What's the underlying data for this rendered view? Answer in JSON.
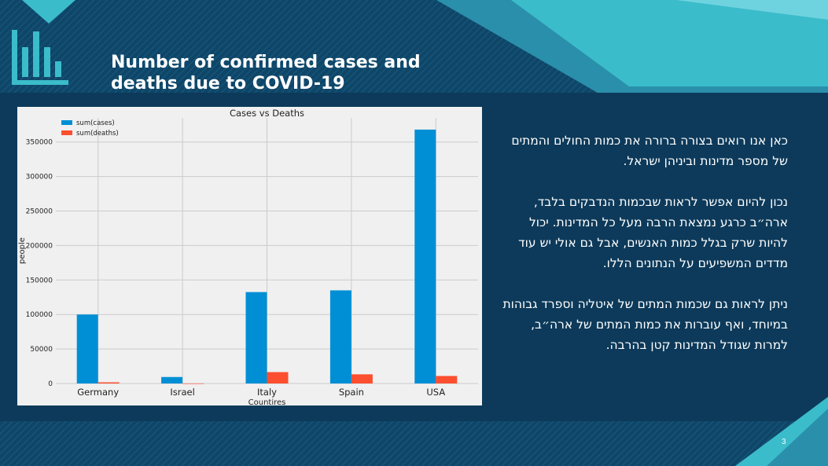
{
  "slide": {
    "title_line1": "Number of confirmed cases and",
    "title_line2": "deaths due to COVID-19",
    "page_number": "3",
    "paragraphs": [
      "כאן אנו רואים בצורה ברורה את כמות החולים והמתים של מספר מדינות וביניהן ישראל.",
      "נכון להיום אפשר לראות שבכמות הנדבקים בלבד, ארה״ב כרגע נמצאת הרבה מעל כל המדינות. יכול להיות שרק בגלל כמות האנשים, אבל גם אולי יש עוד מדדים המשפיעים על הנתונים הללו.",
      "ניתן לראות גם שכמות המתים של איטליה וספרד גבוהות במיוחד, ואף עוברות את כמות המתים של ארה״ב, למרות שגודל המדינות קטן בהרבה."
    ]
  },
  "colors": {
    "background": "#0d3a5a",
    "accent": "#3bbccb",
    "cases": "#008fd5",
    "deaths": "#fc4f30"
  },
  "chart_data": {
    "type": "bar",
    "title": "Cases vs Deaths",
    "xlabel": "Countires",
    "ylabel": "people",
    "categories": [
      "Germany",
      "Israel",
      "Italy",
      "Spain",
      "USA"
    ],
    "series": [
      {
        "name": "sum(cases)",
        "values": [
          100000,
          9400,
          132500,
          135000,
          368000
        ]
      },
      {
        "name": "sum(deaths)",
        "values": [
          1700,
          60,
          16500,
          13300,
          10900
        ]
      }
    ],
    "ylim": [
      0,
      385000
    ],
    "yticks": [
      0,
      50000,
      100000,
      150000,
      200000,
      250000,
      300000,
      350000
    ],
    "ytick_labels": [
      "0",
      "50000",
      "100000",
      "150000",
      "200000",
      "250000",
      "300000",
      "350000"
    ],
    "grid": true,
    "legend": "top-left"
  }
}
